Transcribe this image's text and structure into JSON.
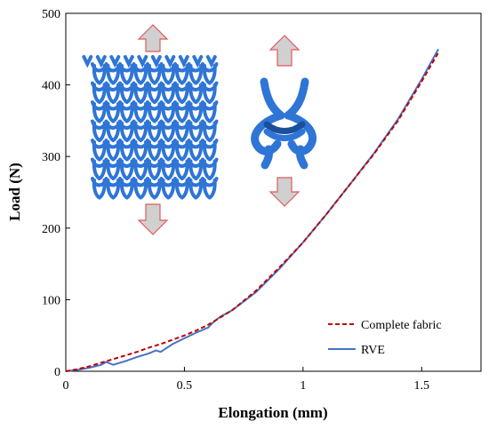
{
  "colors": {
    "fabric_series": "#c00000",
    "rve_series": "#4472c4",
    "yarn": "#2e75d6",
    "arrow_fill": "#d0d0d0",
    "arrow_stroke": "#e05a5a"
  },
  "chart_data": {
    "type": "line",
    "xlabel": "Elongation (mm)",
    "ylabel": "Load (N)",
    "xlim": [
      0,
      1.75
    ],
    "ylim": [
      0,
      500
    ],
    "xticks": [
      0,
      0.5,
      1,
      1.5
    ],
    "xtick_labels": [
      "0",
      "0.5",
      "1",
      "1.5"
    ],
    "yticks": [
      0,
      100,
      200,
      300,
      400,
      500
    ],
    "ytick_labels": [
      "0",
      "100",
      "200",
      "300",
      "400",
      "500"
    ],
    "grid": false,
    "legend_position": "bottom-right",
    "series": [
      {
        "name": "Complete fabric",
        "style": "dashed",
        "color": "#c00000",
        "x": [
          0,
          0.05,
          0.1,
          0.15,
          0.2,
          0.25,
          0.3,
          0.35,
          0.4,
          0.45,
          0.5,
          0.55,
          0.6,
          0.65,
          0.7,
          0.8,
          0.9,
          1.0,
          1.1,
          1.2,
          1.3,
          1.4,
          1.5,
          1.57
        ],
        "values": [
          0,
          3,
          7,
          12,
          17,
          22,
          27,
          33,
          38,
          44,
          50,
          57,
          65,
          75,
          85,
          112,
          145,
          180,
          220,
          262,
          304,
          350,
          405,
          445
        ]
      },
      {
        "name": "RVE",
        "style": "solid",
        "color": "#4472c4",
        "x": [
          0,
          0.05,
          0.1,
          0.15,
          0.17,
          0.2,
          0.25,
          0.3,
          0.35,
          0.38,
          0.4,
          0.45,
          0.5,
          0.55,
          0.6,
          0.62,
          0.65,
          0.7,
          0.8,
          0.9,
          1.0,
          1.1,
          1.2,
          1.3,
          1.4,
          1.5,
          1.57
        ],
        "values": [
          0,
          2,
          5,
          9,
          13,
          9,
          14,
          20,
          25,
          29,
          27,
          38,
          46,
          54,
          61,
          68,
          76,
          85,
          110,
          143,
          180,
          220,
          262,
          305,
          352,
          408,
          450
        ]
      }
    ]
  }
}
